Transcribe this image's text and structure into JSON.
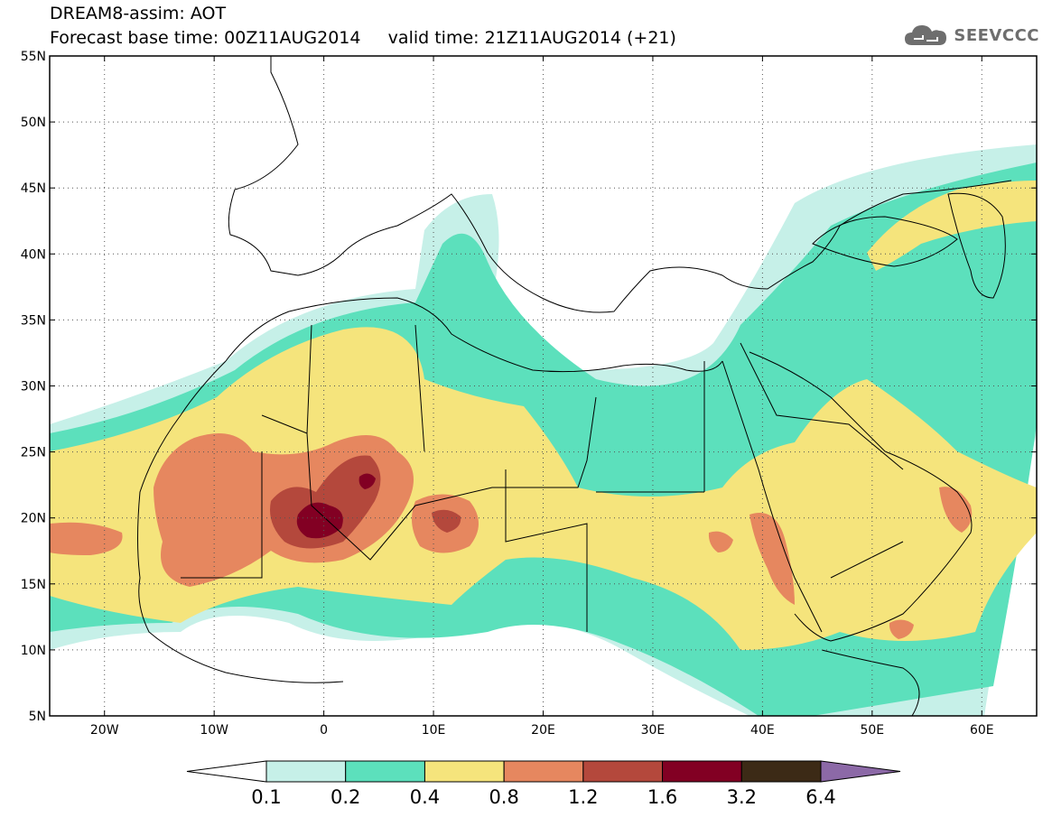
{
  "title": {
    "line1": "DREAM8-assim: AOT",
    "line2": "Forecast base time: 00Z11AUG2014     valid time: 21Z11AUG2014 (+21)"
  },
  "brand": {
    "name": "SEEVCCC",
    "icon": "cloud-icon",
    "color": "#6e6e6e"
  },
  "map": {
    "lon_range": [
      -25,
      65
    ],
    "lat_range": [
      5,
      55
    ],
    "y_ticks": [
      "55N",
      "50N",
      "45N",
      "40N",
      "35N",
      "30N",
      "25N",
      "20N",
      "15N",
      "10N",
      "5N"
    ],
    "y_tick_values": [
      55,
      50,
      45,
      40,
      35,
      30,
      25,
      20,
      15,
      10,
      5
    ],
    "x_ticks": [
      "20W",
      "10W",
      "0",
      "10E",
      "20E",
      "30E",
      "40E",
      "50E",
      "60E"
    ],
    "x_tick_values": [
      -20,
      -10,
      0,
      10,
      20,
      30,
      40,
      50,
      60
    ],
    "gridlines": "dotted"
  },
  "colorbar": {
    "labels": [
      "0.1",
      "0.2",
      "0.4",
      "0.8",
      "1.2",
      "1.6",
      "3.2",
      "6.4"
    ],
    "colors": [
      "#ffffff",
      "#c6f0e8",
      "#5ce0bc",
      "#f5e47c",
      "#e6875f",
      "#b4483c",
      "#820023",
      "#3c2a16",
      "#8c69a7"
    ]
  }
}
